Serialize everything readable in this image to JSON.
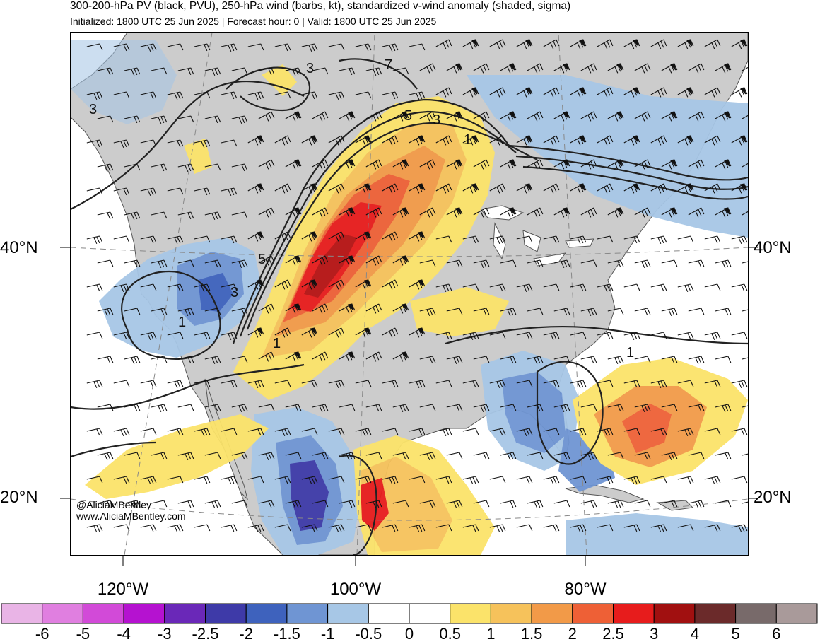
{
  "title": "300-200-hPa PV (black, PVU), 250-hPa wind (barbs, kt), standardized v-wind anomaly (shaded, sigma)",
  "subtitle": "Initialized: 1800 UTC 25 Jun 2025 | Forecast hour: 0 | Valid: 1800 UTC 25 Jun 2025",
  "latitude_labels": {
    "lat40_left": "40°N",
    "lat40_right": "40°N",
    "lat20_left": "20°N",
    "lat20_right": "20°N"
  },
  "longitude_labels": {
    "lon120": "120°W",
    "lon100": "100°W",
    "lon80": "80°W"
  },
  "credits": {
    "handle": "@AliciaMBentley",
    "website": "www.AliciaMBentley.com"
  },
  "pv_contour_labels": [
    "3",
    "3",
    "7",
    "5",
    "3",
    "1",
    "5",
    "3",
    "1",
    "1",
    "1"
  ],
  "colorbar": {
    "labels": [
      "-6",
      "-5",
      "-4",
      "-3",
      "-2.5",
      "-2",
      "-1.5",
      "-1",
      "-0.5",
      "0",
      "0.5",
      "1",
      "1.5",
      "2",
      "2.5",
      "3",
      "4",
      "5",
      "6"
    ],
    "colors": [
      "#e9b4e6",
      "#e07fe0",
      "#d24ad8",
      "#b512d0",
      "#6a28b8",
      "#3e3aa8",
      "#3e62bd",
      "#6f95d3",
      "#a7c7e6",
      "#ffffff",
      "#ffffff",
      "#fbe36a",
      "#f6c25b",
      "#f29a48",
      "#ee6036",
      "#e71c1c",
      "#a11010",
      "#6b2a2a",
      "#786a6a",
      "#a99a9a"
    ]
  },
  "map_colors": {
    "land": "#cccccc",
    "ocean": "#ffffff",
    "coast": "#555555",
    "contour": "#222222"
  }
}
